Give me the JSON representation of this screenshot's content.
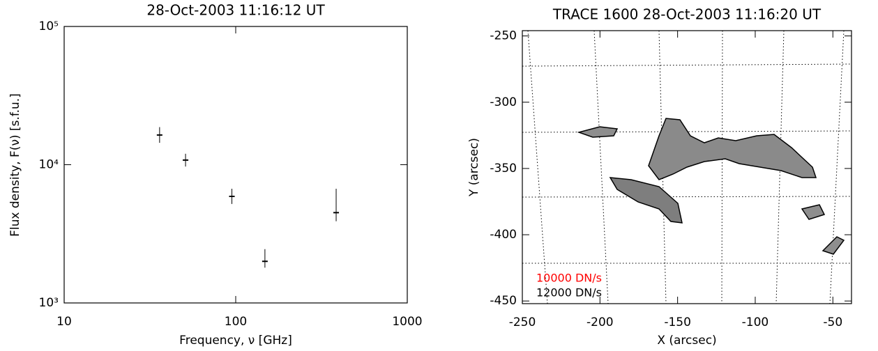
{
  "chart_data": [
    {
      "type": "errorbar",
      "title": "28-Oct-2003 11:16:12 UT",
      "xlabel": "Frequency, ν [GHz]",
      "ylabel": "Flux density, F(ν) [s.f.u.]",
      "x": [
        36,
        51,
        95,
        148,
        385
      ],
      "values": [
        16400,
        10800,
        5900,
        2000,
        4500
      ],
      "errors_low": [
        2000,
        1100,
        700,
        200,
        600
      ],
      "errors_high": [
        2300,
        1200,
        800,
        450,
        2200
      ],
      "xlog": true,
      "ylog": true,
      "xlim": [
        10,
        1000
      ],
      "ylim": [
        1000,
        100000
      ],
      "xticks": [
        10,
        100,
        1000
      ],
      "yticks": [
        {
          "value": 1000,
          "label": "10³"
        },
        {
          "value": 10000,
          "label": "10⁴"
        },
        {
          "value": 100000,
          "label": "10⁵"
        }
      ],
      "color": "#000000"
    },
    {
      "type": "contour-image",
      "title": "TRACE 1600 28-Oct-2003 11:16:20 UT",
      "xlabel": "X (arcsec)",
      "ylabel": "Y (arcsec)",
      "xlim": [
        -250,
        -38
      ],
      "ylim": [
        -452,
        -246
      ],
      "xticks": [
        -250,
        -200,
        -150,
        -100,
        -50
      ],
      "yticks": [
        -450,
        -400,
        -350,
        -300,
        -250
      ],
      "contours": [
        {
          "name": "10000 DN/s",
          "color": "#ff0000"
        },
        {
          "name": "12000 DN/s",
          "color": "#000000"
        }
      ]
    }
  ]
}
